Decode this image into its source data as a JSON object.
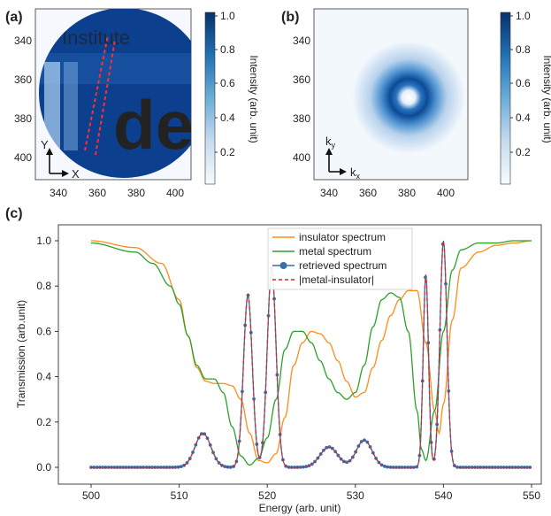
{
  "figure": {
    "panel_labels": [
      "(a)",
      "(b)",
      "(c)"
    ]
  },
  "panel_a": {
    "x_ticks": [
      "340",
      "360",
      "380",
      "400"
    ],
    "y_ticks": [
      "340",
      "360",
      "380",
      "400"
    ],
    "axis_x_label": "X",
    "axis_y_label": "Y",
    "colorbar_ticks": [
      "1.0",
      "0.8",
      "0.6",
      "0.4",
      "0.2"
    ],
    "colorbar_label": "Intensity (arb. unit)",
    "image_text": "dea",
    "image_text_small": "Institute"
  },
  "panel_b": {
    "x_ticks": [
      "340",
      "360",
      "380",
      "400"
    ],
    "y_ticks": [
      "340",
      "360",
      "380",
      "400"
    ],
    "axis_x_label": "k",
    "axis_x_sub": "x",
    "axis_y_label": "k",
    "axis_y_sub": "y",
    "colorbar_ticks": [
      "1.0",
      "0.8",
      "0.6",
      "0.4",
      "0.2"
    ],
    "colorbar_label": "Intensity (arb. unit)"
  },
  "colors": {
    "orange": "#ff8c1a",
    "green": "#2ca02c",
    "blue": "#3a6ea8",
    "red": "#d62728",
    "dark_blue": "#08306b",
    "light_blue": "#f3f8fd"
  },
  "chart_data": {
    "type": "line",
    "xlabel": "Energy (arb. unit)",
    "ylabel": "Transmission (arb.unit)",
    "xlim": [
      500,
      550
    ],
    "ylim": [
      -0.03,
      1.05
    ],
    "x_ticks": [
      "500",
      "510",
      "520",
      "530",
      "540",
      "550"
    ],
    "y_ticks": [
      "0.0",
      "0.2",
      "0.4",
      "0.6",
      "0.8",
      "1.0"
    ],
    "legend_position": "top-center",
    "series": [
      {
        "name": "insulator spectrum",
        "style": "line",
        "color": "#ff8c1a",
        "x": [
          500,
          505,
          508,
          510,
          511,
          512,
          513,
          514,
          515,
          516,
          517,
          518,
          519,
          520,
          521,
          522,
          523,
          524,
          525,
          526,
          527,
          528,
          529,
          530,
          531,
          532,
          533,
          534,
          535,
          536,
          537,
          538,
          539,
          539.5,
          540,
          541,
          542,
          544,
          546,
          548,
          550
        ],
        "y": [
          1.0,
          0.97,
          0.9,
          0.74,
          0.58,
          0.44,
          0.38,
          0.37,
          0.37,
          0.36,
          0.3,
          0.15,
          0.03,
          0.02,
          0.06,
          0.22,
          0.45,
          0.55,
          0.6,
          0.59,
          0.55,
          0.47,
          0.38,
          0.31,
          0.33,
          0.44,
          0.56,
          0.67,
          0.74,
          0.78,
          0.78,
          0.55,
          0.25,
          0.15,
          0.28,
          0.65,
          0.88,
          0.95,
          0.98,
          0.99,
          1.0
        ]
      },
      {
        "name": "metal spectrum",
        "style": "line",
        "color": "#2ca02c",
        "x": [
          500,
          505,
          507,
          509,
          510,
          511,
          512,
          513,
          514,
          515,
          516,
          517,
          518,
          519,
          520,
          521,
          522,
          523,
          524,
          525,
          526,
          527,
          528,
          529,
          530,
          531,
          532,
          533,
          534,
          535,
          536,
          537,
          537.5,
          538,
          539,
          540,
          541,
          542,
          544,
          546,
          548,
          550
        ],
        "y": [
          0.99,
          0.95,
          0.9,
          0.8,
          0.72,
          0.58,
          0.45,
          0.39,
          0.39,
          0.33,
          0.18,
          0.05,
          0.01,
          0.04,
          0.13,
          0.3,
          0.52,
          0.6,
          0.6,
          0.55,
          0.47,
          0.39,
          0.33,
          0.3,
          0.33,
          0.45,
          0.62,
          0.74,
          0.77,
          0.75,
          0.6,
          0.25,
          0.08,
          0.03,
          0.25,
          0.6,
          0.87,
          0.96,
          0.99,
          0.99,
          1.0,
          1.0
        ]
      },
      {
        "name": "retrieved spectrum",
        "style": "line-marker",
        "color": "#3a6ea8",
        "peaks": [
          [
            512.7,
            0.15,
            0.9
          ],
          [
            517.8,
            0.76,
            0.5
          ],
          [
            520.5,
            0.88,
            0.5
          ],
          [
            527,
            0.09,
            1.0
          ],
          [
            531,
            0.12,
            0.9
          ],
          [
            538,
            0.85,
            0.3
          ],
          [
            540,
            1.0,
            0.4
          ]
        ]
      },
      {
        "name": "|metal-insulator|",
        "style": "dashed",
        "color": "#d62728",
        "peaks": [
          [
            512.7,
            0.15,
            0.9
          ],
          [
            517.8,
            0.76,
            0.5
          ],
          [
            520.5,
            0.88,
            0.5
          ],
          [
            527,
            0.09,
            1.0
          ],
          [
            531,
            0.12,
            0.9
          ],
          [
            538,
            0.85,
            0.3
          ],
          [
            540,
            1.0,
            0.4
          ]
        ]
      }
    ]
  }
}
